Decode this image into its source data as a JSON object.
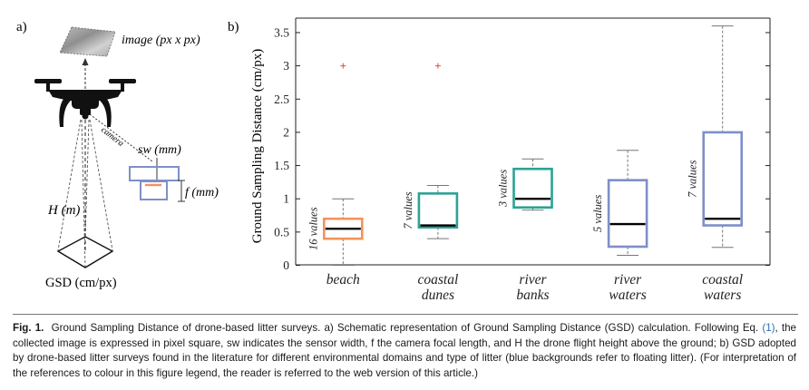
{
  "panel_a": {
    "label": "a)",
    "image_label": "image (px x px)",
    "camera_label": "camera",
    "sw_label": "sw (mm)",
    "f_label": "f (mm)",
    "h_label": "H (m)",
    "gsd_label": "GSD (cm/px)"
  },
  "chart_data": {
    "type": "box",
    "panel_label": "b)",
    "ylabel": "Ground Sampling Distance (cm/px)",
    "xlabel": "",
    "ylim": [
      0,
      3.7
    ],
    "yticks": [
      0,
      0.5,
      1,
      1.5,
      2,
      2.5,
      3,
      3.5
    ],
    "ytick_labels": [
      "0",
      "0.5",
      "1",
      "1.5",
      "2",
      "2.5",
      "3",
      "3.5"
    ],
    "grid": false,
    "categories": [
      "beach",
      "coastal dunes",
      "river banks",
      "river waters",
      "coastal waters"
    ],
    "category_lines": [
      [
        "beach"
      ],
      [
        "coastal",
        "dunes"
      ],
      [
        "river",
        "banks"
      ],
      [
        "river",
        "waters"
      ],
      [
        "coastal",
        "waters"
      ]
    ],
    "boxes": [
      {
        "category": "beach",
        "min": 0.0,
        "q1": 0.4,
        "median": 0.55,
        "q3": 0.7,
        "max": 1.0,
        "outliers": [
          3.0
        ],
        "count_label": "16 values",
        "color": "#f4925c"
      },
      {
        "category": "coastal dunes",
        "min": 0.4,
        "q1": 0.57,
        "median": 0.6,
        "q3": 1.08,
        "max": 1.2,
        "outliers": [
          3.0
        ],
        "count_label": "7 values",
        "color": "#2aa394"
      },
      {
        "category": "river banks",
        "min": 0.83,
        "q1": 0.87,
        "median": 1.0,
        "q3": 1.45,
        "max": 1.6,
        "outliers": [],
        "count_label": "3 values",
        "color": "#2aa394"
      },
      {
        "category": "river waters",
        "min": 0.15,
        "q1": 0.28,
        "median": 0.62,
        "q3": 1.28,
        "max": 1.73,
        "outliers": [],
        "count_label": "5 values",
        "color": "#7f8fc7"
      },
      {
        "category": "coastal waters",
        "min": 0.27,
        "q1": 0.6,
        "median": 0.7,
        "q3": 2.0,
        "max": 3.6,
        "outliers": [],
        "count_label": "7 values",
        "color": "#7f8fc7"
      }
    ]
  },
  "caption": {
    "label": "Fig. 1.",
    "text_1": "Ground Sampling Distance of drone-based litter surveys. a) Schematic representation of Ground Sampling Distance (GSD) calculation. Following Eq.",
    "eq_ref": "(1)",
    "text_2": ", the collected image is expressed in pixel square, sw indicates the sensor width, f the camera focal length, and H the drone flight height above the ground; b) GSD adopted by drone-based litter surveys found in the literature for different environmental domains and type of litter (blue backgrounds refer to floating litter). (For interpretation of the references to colour in this figure legend, the reader is referred to the web version of this article.)"
  },
  "colors": {
    "beach": "#f4925c",
    "teal": "#2aa394",
    "blue": "#7f8fc7",
    "outlier": "#e84a4a",
    "axis": "#222222",
    "whisker": "#777777"
  }
}
